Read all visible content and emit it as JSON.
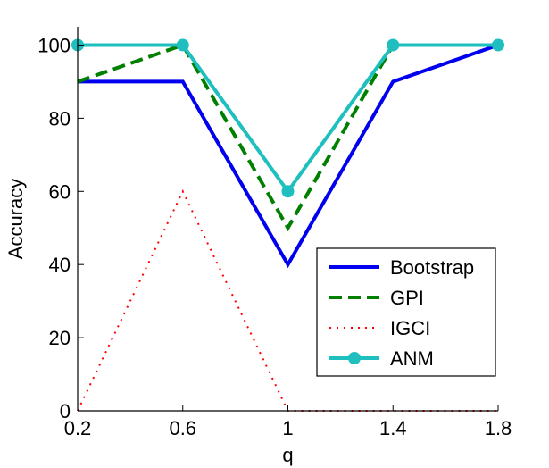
{
  "chart_data": {
    "type": "line",
    "title": "",
    "xlabel": "q",
    "ylabel": "Accuracy",
    "x": [
      0.2,
      0.6,
      1.0,
      1.4,
      1.8
    ],
    "xticks": [
      "0.2",
      "0.6",
      "1",
      "1.4",
      "1.8"
    ],
    "xlim": [
      0.2,
      1.8
    ],
    "yticks": [
      "0",
      "20",
      "40",
      "60",
      "80",
      "100"
    ],
    "ylim": [
      0,
      105
    ],
    "grid": false,
    "legend_position": "bottom-right",
    "series": [
      {
        "name": "Bootstrap",
        "values": [
          90,
          90,
          40,
          90,
          100
        ],
        "color": "#0000ee",
        "style": "solid",
        "marker": "none"
      },
      {
        "name": "GPI",
        "values": [
          90,
          100,
          50,
          100,
          100
        ],
        "color": "#007f00",
        "style": "dashed",
        "marker": "none"
      },
      {
        "name": "IGCI",
        "values": [
          0,
          60,
          0,
          0,
          0
        ],
        "color": "#ff0000",
        "style": "dotted",
        "marker": "none"
      },
      {
        "name": "ANM",
        "values": [
          100,
          100,
          60,
          100,
          100
        ],
        "color": "#1fbfbf",
        "style": "solid",
        "marker": "circle"
      }
    ]
  }
}
